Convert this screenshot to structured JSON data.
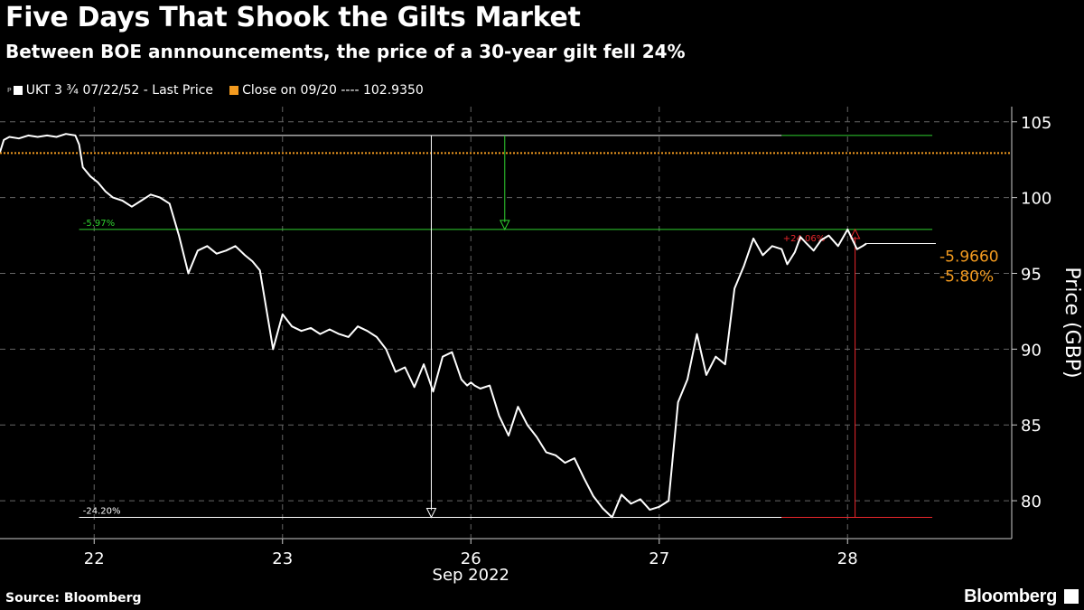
{
  "title": "Five Days That Shook the Gilts Market",
  "subtitle": "Between BOE annnouncements, the price of a 30-year gilt fell 24%",
  "legend": {
    "series_marker": "ᴘ",
    "series_label": "UKT 3 ¾  07/22/52 - Last Price",
    "reference_label": "Close on 09/20 ---- 102.9350"
  },
  "source": "Source: Bloomberg",
  "brand": "Bloomberg",
  "colors": {
    "price": "#ffffff",
    "reference": "#f29a1f",
    "drop": "#2fd12f",
    "rise": "#e8262b",
    "grid": "#666666"
  },
  "chart_data": {
    "type": "line",
    "title": "Five Days That Shook the Gilts Market",
    "xlabel": "Sep 2022",
    "ylabel": "Price (GBP)",
    "x_ticks": [
      "22",
      "23",
      "26",
      "27",
      "28"
    ],
    "ylim": [
      77.5,
      106
    ],
    "y_ticks": [
      80,
      85,
      90,
      95,
      100,
      105
    ],
    "grid": true,
    "legend_position": "top-left",
    "reference": {
      "name": "Close on 09/20",
      "value": 102.935
    },
    "series": [
      {
        "name": "UKT 3 ¾ 07/22/52 - Last Price",
        "x": [
          0,
          0.02,
          0.05,
          0.1,
          0.15,
          0.2,
          0.25,
          0.3,
          0.35,
          0.4,
          0.42,
          0.44,
          0.48,
          0.52,
          0.56,
          0.6,
          0.65,
          0.7,
          0.75,
          0.8,
          0.85,
          0.9,
          0.95,
          1.0,
          1.05,
          1.1,
          1.15,
          1.2,
          1.25,
          1.3,
          1.34,
          1.38,
          1.45,
          1.5,
          1.55,
          1.6,
          1.65,
          1.7,
          1.75,
          1.8,
          1.85,
          1.9,
          1.95,
          2.0,
          2.05,
          2.1,
          2.15,
          2.2,
          2.25,
          2.3,
          2.35,
          2.4,
          2.45,
          2.48,
          2.5,
          2.52,
          2.55,
          2.6,
          2.65,
          2.7,
          2.75,
          2.8,
          2.85,
          2.9,
          2.95,
          3.0,
          3.05,
          3.1,
          3.15,
          3.2,
          3.25,
          3.3,
          3.35,
          3.4,
          3.45,
          3.5,
          3.55,
          3.6,
          3.65,
          3.7,
          3.75,
          3.8,
          3.85,
          3.9,
          3.95,
          4.0,
          4.05,
          4.1,
          4.15,
          4.18,
          4.22,
          4.25,
          4.28,
          4.32,
          4.36,
          4.4,
          4.45,
          4.5,
          4.55,
          4.58,
          4.6
        ],
        "y": [
          103.0,
          103.8,
          104.0,
          103.9,
          104.1,
          104.0,
          104.1,
          104.0,
          104.2,
          104.1,
          103.5,
          102.0,
          101.4,
          101.0,
          100.4,
          100.0,
          99.8,
          99.4,
          99.8,
          100.2,
          100.0,
          99.6,
          97.5,
          95.0,
          96.5,
          96.8,
          96.3,
          96.5,
          96.8,
          96.2,
          95.8,
          95.2,
          90.0,
          92.3,
          91.5,
          91.2,
          91.4,
          91.0,
          91.3,
          91.0,
          90.8,
          91.5,
          91.2,
          90.8,
          90.0,
          88.5,
          88.8,
          87.5,
          89.0,
          87.2,
          89.5,
          89.8,
          88.0,
          87.6,
          87.8,
          87.6,
          87.4,
          87.6,
          85.6,
          84.3,
          86.2,
          85.0,
          84.2,
          83.2,
          83.0,
          82.5,
          82.8,
          81.5,
          80.3,
          79.5,
          78.9,
          80.4,
          79.8,
          80.1,
          79.4,
          79.6,
          80.0,
          86.5,
          88.0,
          91.0,
          88.3,
          89.5,
          89.0,
          94.0,
          95.5,
          97.3,
          96.2,
          96.8,
          96.6,
          95.6,
          96.4,
          97.4,
          97.0,
          96.5,
          97.2,
          97.5,
          96.8,
          97.9,
          96.6,
          96.8,
          96.97
        ]
      }
    ],
    "annotations": [
      {
        "label": "-5.97%",
        "from": 104.1,
        "to": 97.9
      },
      {
        "label": "-24.20%",
        "from": 104.1,
        "to": 78.9
      },
      {
        "label": "+24.06%",
        "from": 78.9,
        "to": 97.9
      }
    ],
    "last_value": {
      "change": "-5.9660",
      "percent": "-5.80%"
    }
  }
}
